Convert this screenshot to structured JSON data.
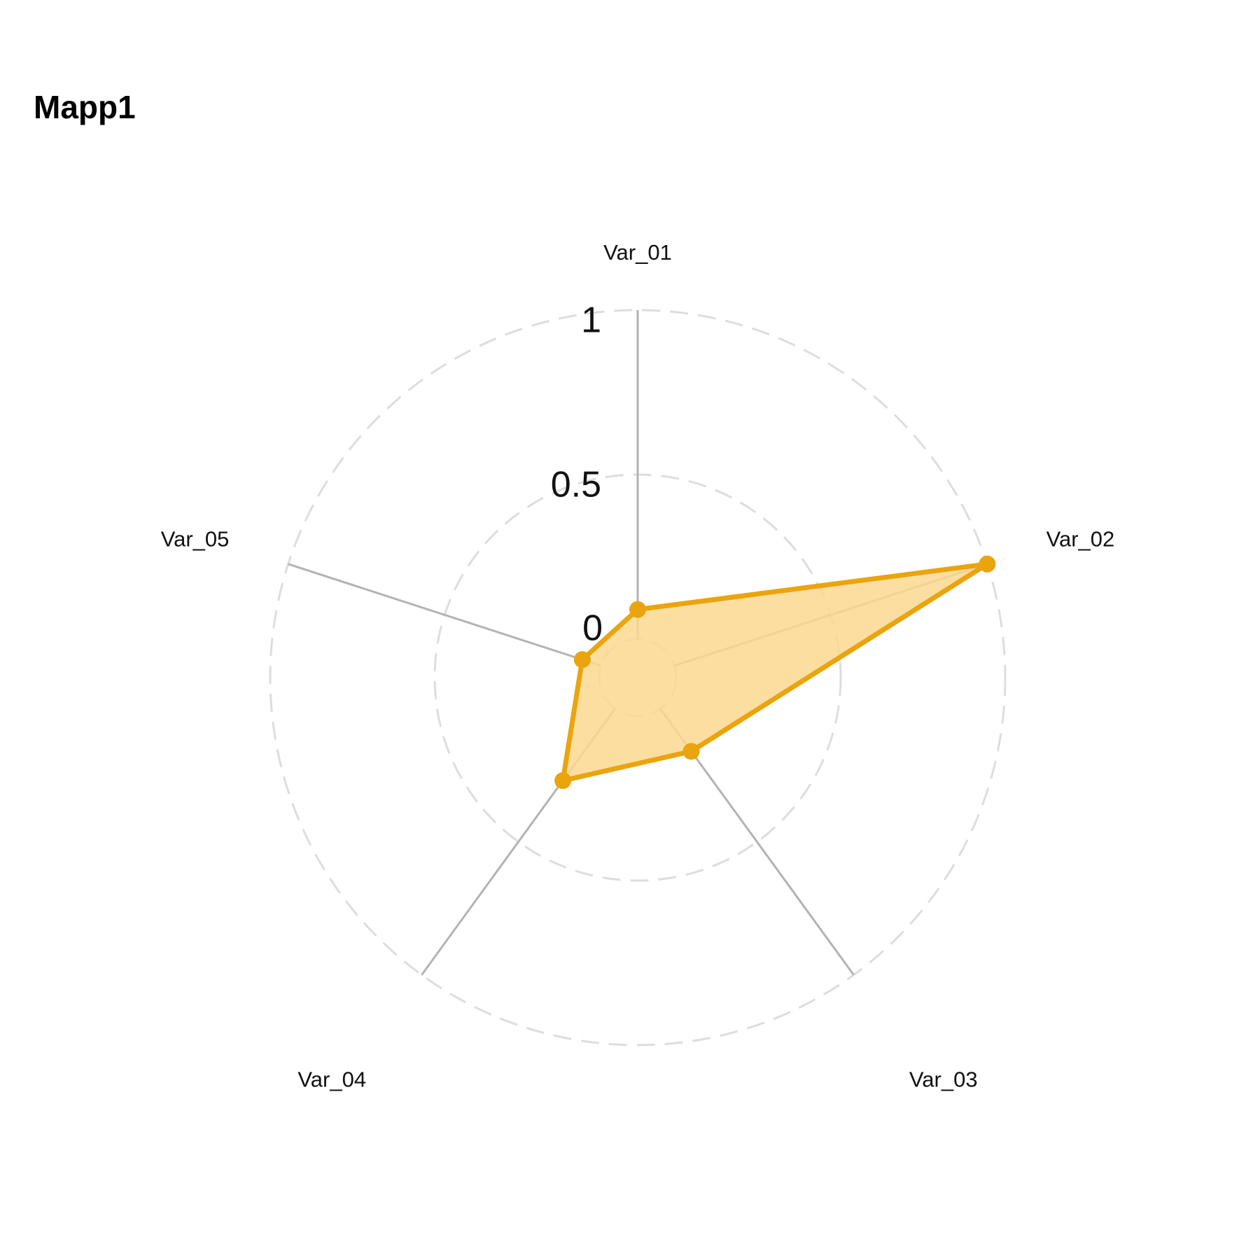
{
  "chart_data": {
    "type": "radar",
    "title": "Mapp1",
    "axes": [
      "Var_01",
      "Var_02",
      "Var_03",
      "Var_04",
      "Var_05"
    ],
    "grid_values": [
      0,
      0.5,
      1
    ],
    "grid_labels": [
      "0",
      "0.5",
      "1"
    ],
    "range": [
      0,
      1
    ],
    "series": [
      {
        "values": [
          0.09,
          1.0,
          0.16,
          0.27,
          0.06
        ]
      }
    ],
    "colors": {
      "line": "#EAA40D",
      "fill": "#FCD890",
      "axis": "#B3B3B3",
      "grid": "#DDDDDD"
    }
  }
}
